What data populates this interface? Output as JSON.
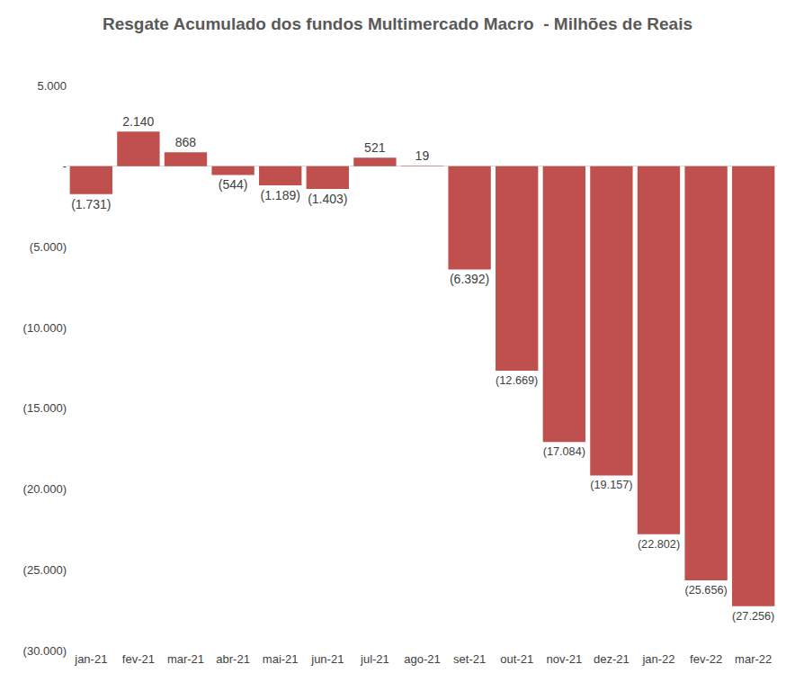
{
  "chart_data": {
    "type": "bar",
    "title": "Resgate Acumulado dos fundos Multimercado Macro  - Milhões de Reais",
    "categories": [
      "jan-21",
      "fev-21",
      "mar-21",
      "abr-21",
      "mai-21",
      "jun-21",
      "jul-21",
      "ago-21",
      "set-21",
      "out-21",
      "nov-21",
      "dez-21",
      "jan-22",
      "fev-22",
      "mar-22"
    ],
    "values": [
      -1731,
      2140,
      868,
      -544,
      -1189,
      -1403,
      521,
      19,
      -6392,
      -12669,
      -17084,
      -19157,
      -22802,
      -25656,
      -27256
    ],
    "value_labels": [
      "(1.731)",
      "2.140",
      "868",
      "(544)",
      "(1.189)",
      "(1.403)",
      "521",
      "19",
      "(6.392)",
      "(12.669)",
      "(17.084)",
      "(19.157)",
      "(22.802)",
      "(25.656)",
      "(27.256)"
    ],
    "color": "#c0504d",
    "ylim": [
      -30000,
      5000
    ],
    "yticks": [
      {
        "value": 5000,
        "label": "5.000"
      },
      {
        "value": 0,
        "label": "-"
      },
      {
        "value": -5000,
        "label": "(5.000)"
      },
      {
        "value": -10000,
        "label": "(10.000)"
      },
      {
        "value": -15000,
        "label": "(15.000)"
      },
      {
        "value": -20000,
        "label": "(20.000)"
      },
      {
        "value": -25000,
        "label": "(25.000)"
      },
      {
        "value": -30000,
        "label": "(30.000)"
      }
    ],
    "grid": false,
    "data_labels": true
  }
}
